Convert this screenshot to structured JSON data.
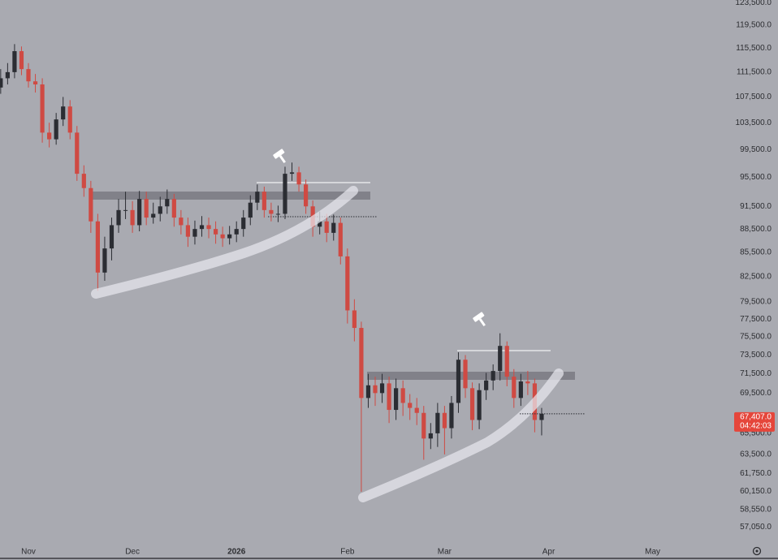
{
  "chart_data": {
    "type": "candlestick",
    "log_scale": true,
    "grid": false,
    "up_color": "#2b2d33",
    "down_color": "#cf4a43",
    "categories": [
      null,
      null,
      null,
      null,
      "Nov",
      null,
      null,
      null,
      null,
      null,
      null,
      null,
      null,
      null,
      null,
      null,
      null,
      null,
      null,
      "Dec",
      null,
      null,
      null,
      null,
      null,
      null,
      null,
      null,
      null,
      null,
      null,
      null,
      null,
      null,
      "2026",
      null,
      null,
      null,
      null,
      null,
      null,
      null,
      null,
      null,
      null,
      null,
      null,
      null,
      null,
      null,
      "Feb",
      null,
      null,
      null,
      null,
      null,
      null,
      null,
      null,
      null,
      null,
      null,
      null,
      null,
      "Mar",
      null,
      null,
      null,
      null,
      null,
      null,
      null,
      null,
      null,
      null,
      null,
      null,
      null,
      null,
      "Apr",
      null,
      null,
      null,
      null,
      null,
      null,
      null,
      null,
      null,
      null,
      null,
      null,
      null,
      null,
      "May",
      null,
      null,
      null,
      null,
      null,
      null,
      null,
      null,
      null,
      null
    ],
    "open": [
      109000,
      110500,
      111500,
      115000,
      112000,
      110000,
      109500,
      102000,
      101000,
      104000,
      106000,
      102000,
      96000,
      94000,
      89500,
      83000,
      86000,
      89000,
      91000,
      91000,
      89000,
      92500,
      90000,
      90500,
      91500,
      92500,
      90000,
      89000,
      87500,
      88500,
      89000,
      88500,
      87800,
      87300,
      87800,
      88500,
      90000,
      92000,
      93500,
      91000,
      90500,
      90500,
      96000,
      96200,
      94500,
      91500,
      88800,
      89500,
      88000,
      89300,
      85000,
      78500,
      76500,
      69000,
      70300,
      69500,
      70500,
      67800,
      70000,
      68500,
      68000,
      67500,
      65000,
      65500,
      67500,
      66000,
      68500,
      73000,
      70000,
      66800,
      69800,
      70800,
      71800,
      74500,
      71200,
      69000,
      70700,
      70500,
      66800,
      null,
      null,
      null,
      null,
      null,
      null,
      null,
      null,
      null,
      null,
      null,
      null,
      null,
      null,
      null,
      null,
      null,
      null,
      null,
      null,
      null,
      null,
      null,
      null,
      null,
      null
    ],
    "high": [
      112000,
      113000,
      116200,
      115800,
      113000,
      111200,
      110500,
      103500,
      105000,
      107500,
      107000,
      103000,
      97200,
      95000,
      90500,
      87500,
      90000,
      92500,
      93500,
      92200,
      93600,
      93500,
      92000,
      92800,
      93800,
      93200,
      91000,
      90000,
      89600,
      90200,
      90000,
      89500,
      88800,
      88900,
      89500,
      91000,
      93000,
      94500,
      94200,
      92000,
      91600,
      97000,
      97600,
      97000,
      95200,
      92300,
      90800,
      90500,
      90400,
      90000,
      86000,
      79800,
      77200,
      71500,
      71200,
      71500,
      71200,
      71000,
      70800,
      69400,
      69000,
      68200,
      66500,
      68500,
      68200,
      69200,
      73800,
      73500,
      70600,
      70500,
      71600,
      72500,
      75900,
      75000,
      72000,
      71500,
      71800,
      71000,
      68000,
      null,
      null,
      null,
      null,
      null,
      null,
      null,
      null,
      null,
      null,
      null,
      null,
      null,
      null,
      null,
      null,
      null,
      null,
      null,
      null,
      null,
      null,
      null,
      null,
      null,
      null
    ],
    "low": [
      108000,
      109500,
      110500,
      111000,
      109000,
      108200,
      100500,
      99800,
      100200,
      103000,
      101000,
      95000,
      92800,
      88000,
      80800,
      82000,
      84500,
      88000,
      89800,
      88000,
      88200,
      89000,
      89200,
      89500,
      90500,
      88800,
      87800,
      86200,
      86500,
      87500,
      87300,
      86600,
      86200,
      86500,
      86800,
      87500,
      89000,
      91000,
      90000,
      89500,
      89400,
      89800,
      95000,
      93500,
      90500,
      87500,
      87800,
      86800,
      87000,
      84000,
      77000,
      75000,
      60100,
      68000,
      68200,
      68500,
      66500,
      66800,
      67200,
      66800,
      66300,
      63000,
      64000,
      64200,
      63500,
      65000,
      67500,
      69000,
      65800,
      65900,
      68800,
      69800,
      70800,
      70200,
      68000,
      68200,
      69300,
      65600,
      65300,
      null,
      null,
      null,
      null,
      null,
      null,
      null,
      null,
      null,
      null,
      null,
      null,
      null,
      null,
      null,
      null,
      null,
      null,
      null,
      null,
      null,
      null,
      null,
      null,
      null,
      null
    ],
    "close": [
      110500,
      111500,
      115000,
      112000,
      110000,
      109500,
      102000,
      101000,
      104000,
      106000,
      102000,
      96000,
      94000,
      89500,
      83000,
      86000,
      89000,
      91000,
      91000,
      89000,
      92500,
      90000,
      90500,
      91500,
      92500,
      90000,
      89000,
      87500,
      88500,
      89000,
      88500,
      87800,
      87300,
      87800,
      88500,
      90000,
      92000,
      93500,
      91000,
      90500,
      90500,
      96000,
      96200,
      94500,
      91500,
      88800,
      89500,
      88000,
      89300,
      85000,
      78500,
      76500,
      69000,
      70300,
      69500,
      70500,
      67800,
      70000,
      68500,
      68000,
      67500,
      65000,
      65500,
      67500,
      66000,
      68500,
      73000,
      70000,
      66800,
      69800,
      70800,
      71800,
      74500,
      71200,
      69000,
      70700,
      70500,
      66800,
      67407,
      null,
      null,
      null,
      null,
      null,
      null,
      null,
      null,
      null,
      null,
      null,
      null,
      null,
      null,
      null,
      null,
      null,
      null,
      null,
      null,
      null,
      null,
      null,
      null,
      null,
      null
    ],
    "ylim": [
      56000,
      124000
    ],
    "yticks": [
      {
        "value": 123500,
        "label": "123,500.0"
      },
      {
        "value": 119500,
        "label": "119,500.0"
      },
      {
        "value": 115500,
        "label": "115,500.0"
      },
      {
        "value": 111500,
        "label": "111,500.0"
      },
      {
        "value": 107500,
        "label": "107,500.0"
      },
      {
        "value": 103500,
        "label": "103,500.0"
      },
      {
        "value": 99500,
        "label": "99,500.0"
      },
      {
        "value": 95500,
        "label": "95,500.0"
      },
      {
        "value": 91500,
        "label": "91,500.0"
      },
      {
        "value": 88500,
        "label": "88,500.0"
      },
      {
        "value": 85500,
        "label": "85,500.0"
      },
      {
        "value": 82500,
        "label": "82,500.0"
      },
      {
        "value": 79500,
        "label": "79,500.0"
      },
      {
        "value": 77500,
        "label": "77,500.0"
      },
      {
        "value": 75500,
        "label": "75,500.0"
      },
      {
        "value": 73500,
        "label": "73,500.0"
      },
      {
        "value": 71500,
        "label": "71,500.0"
      },
      {
        "value": 69500,
        "label": "69,500.0"
      },
      {
        "value": 65500,
        "label": "65,500.0"
      },
      {
        "value": 63500,
        "label": "63,500.0"
      },
      {
        "value": 61750,
        "label": "61,750.0"
      },
      {
        "value": 60150,
        "label": "60,150.0"
      },
      {
        "value": 58550,
        "label": "58,550.0"
      },
      {
        "value": 57050,
        "label": "57,050.0"
      }
    ],
    "last_price": {
      "value": 67407,
      "label": "67,407.0"
    },
    "countdown": "04:42:03",
    "last_price_color": "#e5463b"
  }
}
